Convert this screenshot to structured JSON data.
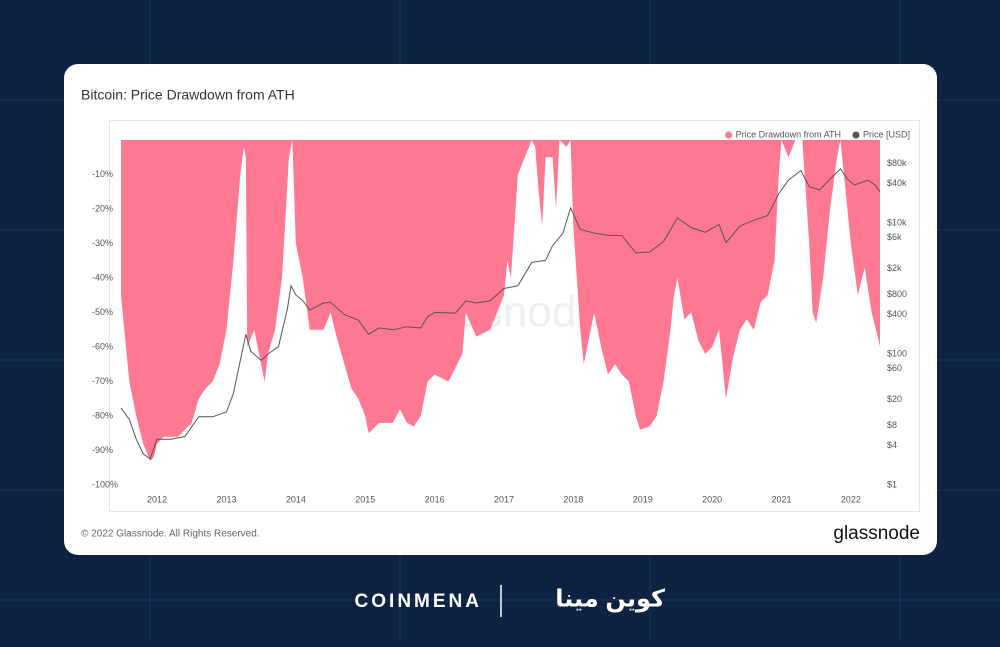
{
  "brand": {
    "name": "COINMENA",
    "name_arabic": "كوين مينا"
  },
  "card": {
    "footer": "© 2022 Glassnode. All Rights Reserved.",
    "logo": "glassnode",
    "watermark": "glassnode"
  },
  "chart_data": {
    "type": "area-line",
    "title": "Bitcoin: Price Drawdown from ATH",
    "xlim": [
      2011.48,
      2022.42
    ],
    "xticks": [
      2012,
      2013,
      2014,
      2015,
      2016,
      2017,
      2018,
      2019,
      2020,
      2021,
      2022
    ],
    "ylim": [
      -100,
      0
    ],
    "yticks": [
      {
        "value": -10,
        "label": "-10%"
      },
      {
        "value": -20,
        "label": "-20%"
      },
      {
        "value": -30,
        "label": "-30%"
      },
      {
        "value": -40,
        "label": "-40%"
      },
      {
        "value": -50,
        "label": "-50%"
      },
      {
        "value": -60,
        "label": "-60%"
      },
      {
        "value": -70,
        "label": "-70%"
      },
      {
        "value": -80,
        "label": "-80%"
      },
      {
        "value": -90,
        "label": "-90%"
      },
      {
        "value": -100,
        "label": "-100%"
      }
    ],
    "y2lim": [
      1,
      185000
    ],
    "y2scale": "log",
    "y2ticks": [
      {
        "value": 1,
        "label": "$1"
      },
      {
        "value": 4,
        "label": "$4"
      },
      {
        "value": 8,
        "label": "$8"
      },
      {
        "value": 20,
        "label": "$20"
      },
      {
        "value": 60,
        "label": "$60"
      },
      {
        "value": 100,
        "label": "$100"
      },
      {
        "value": 400,
        "label": "$400"
      },
      {
        "value": 800,
        "label": "$800"
      },
      {
        "value": 2000,
        "label": "$2k"
      },
      {
        "value": 6000,
        "label": "$6k"
      },
      {
        "value": 10000,
        "label": "$10k"
      },
      {
        "value": 40000,
        "label": "$40k"
      },
      {
        "value": 80000,
        "label": "$80k"
      }
    ],
    "legend": "top-right",
    "series": [
      {
        "name": "Price Drawdown from ATH",
        "color": "#ff7892",
        "axis": "y",
        "x": [
          2011.48,
          2011.6,
          2011.7,
          2011.8,
          2011.9,
          2011.95,
          2012.0,
          2012.1,
          2012.3,
          2012.5,
          2012.6,
          2012.7,
          2012.8,
          2012.9,
          2013.0,
          2013.1,
          2013.2,
          2013.25,
          2013.28,
          2013.3,
          2013.4,
          2013.5,
          2013.55,
          2013.6,
          2013.7,
          2013.8,
          2013.9,
          2013.95,
          2014.0,
          2014.1,
          2014.2,
          2014.4,
          2014.5,
          2014.6,
          2014.7,
          2014.8,
          2014.9,
          2015.0,
          2015.05,
          2015.2,
          2015.4,
          2015.5,
          2015.6,
          2015.7,
          2015.8,
          2015.9,
          2016.0,
          2016.2,
          2016.4,
          2016.45,
          2016.6,
          2016.8,
          2016.9,
          2017.0,
          2017.05,
          2017.1,
          2017.2,
          2017.3,
          2017.4,
          2017.45,
          2017.5,
          2017.55,
          2017.6,
          2017.7,
          2017.75,
          2017.8,
          2017.9,
          2017.96,
          2018.0,
          2018.1,
          2018.15,
          2018.3,
          2018.4,
          2018.5,
          2018.6,
          2018.7,
          2018.8,
          2018.9,
          2018.96,
          2019.1,
          2019.2,
          2019.3,
          2019.4,
          2019.45,
          2019.5,
          2019.6,
          2019.7,
          2019.8,
          2019.9,
          2020.0,
          2020.1,
          2020.2,
          2020.3,
          2020.4,
          2020.5,
          2020.6,
          2020.7,
          2020.8,
          2020.9,
          2020.96,
          2021.0,
          2021.1,
          2021.2,
          2021.3,
          2021.4,
          2021.45,
          2021.5,
          2021.6,
          2021.7,
          2021.8,
          2021.85,
          2021.95,
          2022.0,
          2022.1,
          2022.2,
          2022.3,
          2022.4,
          2022.42
        ],
        "values": [
          -45,
          -70,
          -80,
          -88,
          -93,
          -92,
          -88,
          -86,
          -86,
          -82,
          -75,
          -72,
          -70,
          -65,
          -55,
          -35,
          -10,
          -2,
          -5,
          -60,
          -55,
          -65,
          -70,
          -62,
          -55,
          -40,
          -5,
          0,
          -30,
          -40,
          -55,
          -55,
          -50,
          -58,
          -65,
          -72,
          -75,
          -80,
          -85,
          -82,
          -82,
          -78,
          -82,
          -83,
          -80,
          -70,
          -68,
          -70,
          -62,
          -50,
          -57,
          -55,
          -50,
          -45,
          -35,
          -40,
          -10,
          -5,
          0,
          -2,
          -15,
          -25,
          -5,
          -5,
          -20,
          0,
          -2,
          0,
          -25,
          -55,
          -65,
          -50,
          -60,
          -68,
          -65,
          -68,
          -70,
          -80,
          -84,
          -83,
          -80,
          -70,
          -55,
          -45,
          -40,
          -52,
          -50,
          -58,
          -62,
          -60,
          -55,
          -75,
          -63,
          -55,
          -52,
          -55,
          -47,
          -45,
          -35,
          -10,
          0,
          -5,
          0,
          0,
          -30,
          -50,
          -53,
          -40,
          -20,
          -5,
          0,
          -20,
          -30,
          -45,
          -37,
          -50,
          -58,
          -60
        ]
      },
      {
        "name": "Price [USD]",
        "color": "#555555",
        "axis": "y2",
        "x": [
          2011.48,
          2011.6,
          2011.7,
          2011.8,
          2011.9,
          2012.0,
          2012.2,
          2012.4,
          2012.6,
          2012.8,
          2013.0,
          2013.1,
          2013.2,
          2013.28,
          2013.35,
          2013.5,
          2013.6,
          2013.75,
          2013.88,
          2013.93,
          2014.0,
          2014.1,
          2014.2,
          2014.4,
          2014.5,
          2014.7,
          2014.9,
          2015.05,
          2015.2,
          2015.4,
          2015.6,
          2015.8,
          2015.9,
          2016.0,
          2016.3,
          2016.45,
          2016.6,
          2016.8,
          2016.95,
          2017.0,
          2017.2,
          2017.4,
          2017.6,
          2017.7,
          2017.85,
          2017.96,
          2018.1,
          2018.3,
          2018.5,
          2018.7,
          2018.9,
          2019.1,
          2019.3,
          2019.5,
          2019.7,
          2019.9,
          2020.1,
          2020.2,
          2020.4,
          2020.6,
          2020.8,
          2020.96,
          2021.1,
          2021.28,
          2021.4,
          2021.55,
          2021.7,
          2021.85,
          2021.95,
          2022.05,
          2022.25,
          2022.35,
          2022.42
        ],
        "values": [
          15,
          10,
          5,
          3,
          2.5,
          5,
          5,
          5.5,
          11,
          11,
          13,
          25,
          80,
          200,
          110,
          80,
          100,
          130,
          500,
          1100,
          800,
          650,
          470,
          600,
          620,
          400,
          330,
          200,
          250,
          235,
          260,
          250,
          370,
          430,
          420,
          650,
          600,
          650,
          900,
          1000,
          1100,
          2500,
          2700,
          4500,
          7000,
          17000,
          8000,
          7000,
          6500,
          6400,
          3500,
          3600,
          5200,
          12000,
          8500,
          7200,
          9500,
          5000,
          9000,
          11000,
          13000,
          28000,
          45000,
          63000,
          36000,
          32000,
          47000,
          67000,
          47000,
          38000,
          45000,
          38000,
          30000
        ]
      }
    ]
  }
}
